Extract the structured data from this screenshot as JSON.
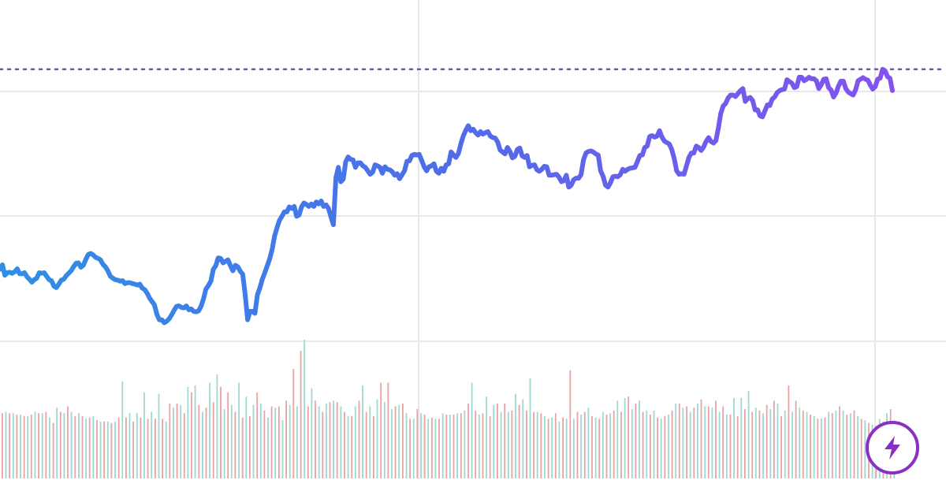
{
  "chart_data": {
    "type": "line",
    "title": "",
    "xlabel": "",
    "ylabel": "",
    "grid": true,
    "legend": "none",
    "ylim": [
      0,
      100
    ],
    "reference_line": {
      "y": 86,
      "style": "dotted",
      "color": "#6a5aa8"
    },
    "series": [
      {
        "values": [
          45.6,
          46.5,
          44.4,
          44.9,
          45.0,
          44.8,
          45.1,
          45.7,
          44.7,
          44.7,
          44.9,
          44.1,
          43.6,
          43.0,
          43.5,
          43.8,
          44.9,
          44.8,
          44.9,
          44.2,
          43.5,
          43.3,
          42.2,
          41.9,
          42.6,
          43.4,
          43.6,
          44.3,
          44.8,
          45.3,
          46.1,
          46.8,
          46.9,
          46.0,
          46.4,
          47.6,
          48.6,
          48.8,
          48.5,
          48.0,
          47.8,
          47.5,
          46.6,
          46.1,
          45.3,
          44.2,
          43.8,
          43.5,
          43.4,
          43.2,
          43.3,
          42.7,
          42.9,
          42.9,
          42.7,
          42.6,
          42.4,
          42.6,
          41.8,
          41.5,
          40.8,
          39.8,
          39.1,
          38.4,
          36.5,
          35.4,
          35.4,
          34.8,
          35.1,
          35.6,
          36.4,
          37.3,
          38.1,
          38.2,
          37.9,
          37.8,
          38.2,
          37.4,
          37.6,
          37.1,
          37.0,
          37.2,
          38.1,
          39.6,
          41.6,
          42.3,
          43.2,
          45.6,
          46.3,
          47.9,
          47.8,
          46.9,
          47.2,
          47.5,
          46.3,
          45.3,
          46.4,
          46.1,
          45.2,
          44.6,
          40.5,
          35.4,
          37.1,
          37.1,
          36.7,
          40.4,
          41.8,
          43.6,
          44.9,
          46.3,
          47.7,
          49.6,
          52.3,
          54.0,
          55.5,
          56.3,
          57.2,
          57.2,
          58.2,
          57.9,
          58.3,
          56.3,
          56.6,
          58.2,
          59.0,
          58.7,
          58.3,
          58.8,
          58.3,
          59.2,
          58.8,
          59.4,
          58.3,
          58.6,
          57.9,
          56.2,
          54.6,
          64.1,
          66.2,
          63.3,
          63.8,
          67.3,
          68.3,
          67.8,
          67.7,
          66.2,
          67.1,
          67.1,
          66.5,
          66.2,
          65.5,
          64.8,
          65.2,
          66.7,
          66.5,
          66.2,
          65.0,
          66.3,
          65.8,
          65.7,
          65.3,
          64.6,
          64.9,
          63.9,
          64.7,
          65.5,
          67.4,
          67.5,
          68.6,
          68.8,
          68.7,
          68.8,
          67.6,
          66.3,
          65.5,
          66.3,
          66.5,
          66.9,
          65.4,
          65.0,
          66.0,
          65.4,
          66.7,
          66.9,
          69.3,
          68.7,
          68.2,
          69.0,
          71.0,
          72.6,
          73.7,
          74.6,
          73.6,
          73.9,
          73.2,
          72.7,
          73.4,
          72.9,
          73.2,
          73.4,
          72.5,
          72.2,
          72.1,
          71.3,
          69.7,
          69.3,
          68.9,
          70.2,
          69.4,
          68.1,
          68.4,
          69.8,
          70.1,
          68.5,
          68.2,
          68.6,
          66.3,
          66.6,
          66.7,
          65.7,
          65.4,
          65.8,
          66.4,
          66.3,
          64.6,
          64.6,
          64.7,
          64.8,
          64.2,
          63.3,
          63.5,
          64.6,
          62.2,
          62.6,
          63.7,
          64.0,
          64.0,
          64.7,
          67.7,
          69.1,
          69.4,
          69.5,
          69.3,
          68.9,
          68.7,
          65.5,
          64.4,
          62.6,
          62.2,
          63.1,
          64.3,
          64.4,
          64.3,
          64.7,
          65.8,
          65.4,
          65.8,
          66.0,
          66.1,
          66.2,
          67.4,
          68.6,
          68.7,
          70.2,
          70.5,
          72.4,
          72.6,
          72.3,
          72.5,
          73.6,
          72.3,
          71.5,
          71.2,
          70.9,
          69.8,
          68.0,
          65.5,
          64.8,
          64.9,
          64.8,
          66.5,
          68.2,
          69.1,
          69.1,
          70.5,
          70.2,
          69.6,
          70.3,
          71.4,
          72.2,
          71.4,
          71.1,
          71.6,
          74.1,
          77.1,
          78.6,
          79.1,
          80.2,
          80.8,
          80.8,
          80.5,
          81.1,
          81.7,
          82.1,
          79.5,
          80.1,
          80.3,
          79.7,
          77.8,
          77.8,
          76.6,
          76.4,
          77.6,
          78.8,
          78.7,
          80.0,
          80.4,
          81.3,
          81.7,
          81.9,
          82.0,
          83.9,
          83.5,
          83.2,
          82.3,
          82.5,
          84.4,
          84.4,
          83.7,
          84.0,
          84.4,
          84.1,
          84.1,
          83.7,
          82.1,
          82.9,
          84.0,
          84.1,
          82.3,
          81.8,
          80.4,
          81.2,
          82.6,
          83.6,
          83.6,
          82.1,
          81.4,
          81.1,
          80.8,
          81.9,
          83.7,
          84.0,
          84.3,
          84.0,
          83.8,
          82.8,
          82.0,
          82.5,
          84.0,
          84.2,
          86.0,
          85.7,
          84.5,
          84.2,
          81.7
        ]
      }
    ],
    "volume": {
      "colors": [
        "#e8a3a3",
        "#9fd7d2"
      ],
      "values": [
        47,
        48,
        47,
        47,
        46,
        46,
        45,
        45,
        46,
        48,
        47,
        47,
        48,
        44,
        40,
        51,
        48,
        47,
        52,
        48,
        45,
        47,
        45,
        43,
        44,
        45,
        42,
        41,
        41,
        41,
        40,
        41,
        44,
        70,
        44,
        47,
        41,
        47,
        44,
        62,
        43,
        48,
        43,
        61,
        43,
        41,
        54,
        51,
        54,
        53,
        47,
        66,
        62,
        67,
        53,
        48,
        51,
        69,
        55,
        75,
        66,
        50,
        62,
        53,
        48,
        69,
        44,
        59,
        45,
        53,
        62,
        54,
        49,
        44,
        52,
        51,
        52,
        42,
        56,
        53,
        79,
        52,
        92,
        100,
        52,
        65,
        56,
        52,
        48,
        54,
        55,
        56,
        55,
        52,
        48,
        45,
        45,
        52,
        56,
        67,
        48,
        52,
        45,
        57,
        69,
        55,
        69,
        50,
        52,
        53,
        54,
        47,
        43,
        43,
        50,
        47,
        46,
        43,
        44,
        43,
        43,
        47,
        46,
        46,
        46,
        47,
        47,
        49,
        54,
        69,
        49,
        46,
        47,
        59,
        45,
        53,
        54,
        48,
        54,
        48,
        49,
        61,
        53,
        57,
        49,
        72,
        48,
        48,
        47,
        45,
        43,
        44,
        47,
        41,
        44,
        43,
        78,
        43,
        48,
        46,
        48,
        51,
        45,
        44,
        43,
        48,
        46,
        47,
        49,
        56,
        48,
        58,
        59,
        50,
        54,
        56,
        48,
        49,
        46,
        49,
        44,
        43,
        45,
        46,
        49,
        54,
        54,
        51,
        52,
        48,
        51,
        54,
        57,
        52,
        52,
        51,
        56,
        48,
        52,
        46,
        46,
        58,
        45,
        58,
        50,
        63,
        48,
        51,
        49,
        47,
        53,
        50,
        56,
        54,
        45,
        49,
        67,
        48,
        56,
        51,
        49,
        48,
        46,
        45,
        43,
        43,
        44,
        48,
        47,
        49,
        52,
        49,
        46,
        47,
        49,
        45,
        43,
        42,
        40,
        39,
        38,
        43,
        41,
        47,
        50,
        42
      ]
    }
  },
  "badge": {
    "icon": "lightning-bolt-icon",
    "color": "#8a2fc4"
  }
}
